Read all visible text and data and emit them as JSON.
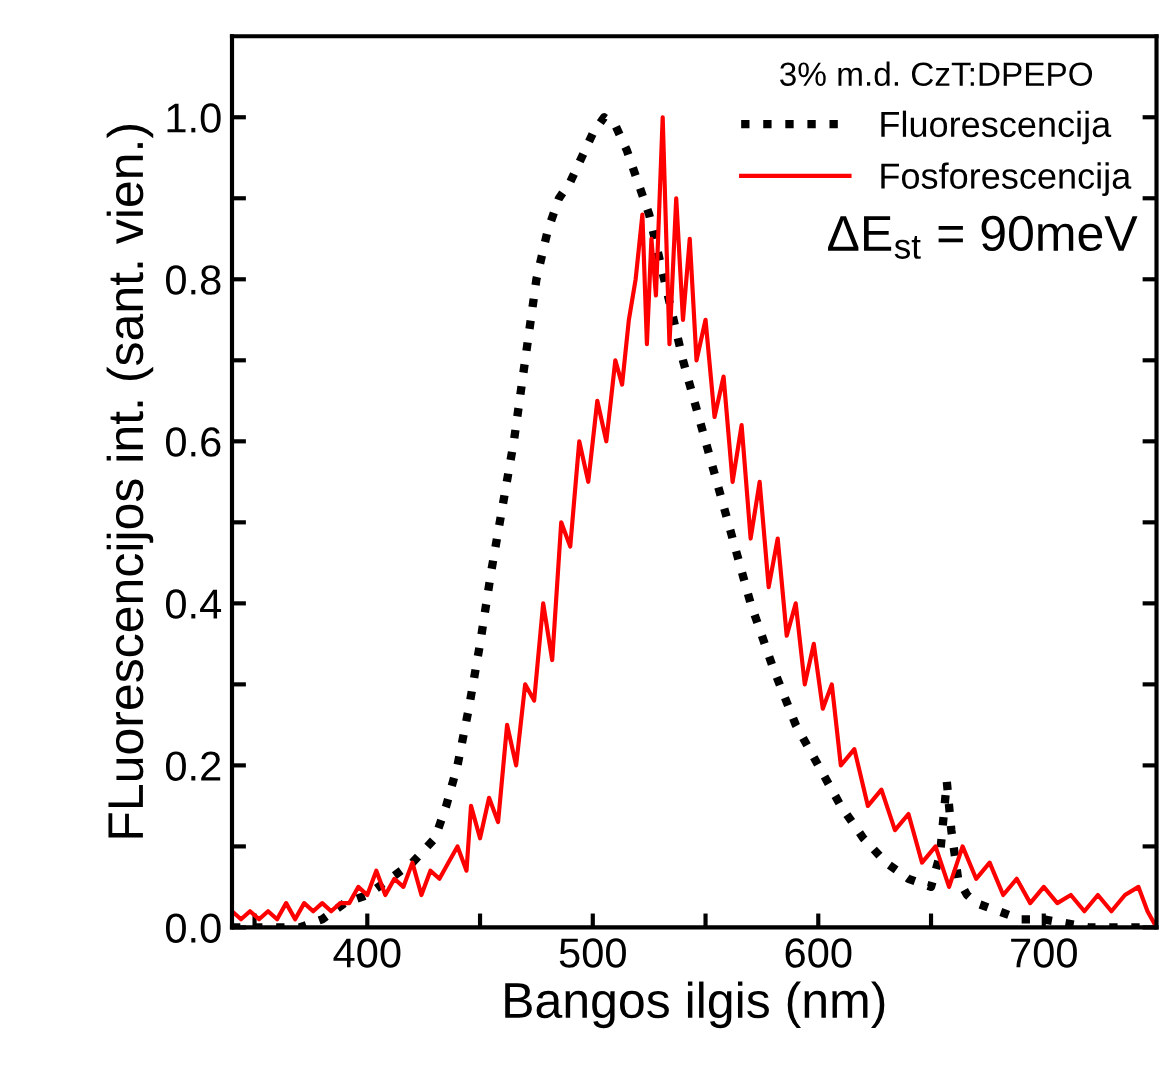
{
  "chart_data": {
    "type": "line",
    "xlabel": "Bangos ilgis (nm)",
    "ylabel": "FLuorescencijos int. (sant. vien.)",
    "xlim": [
      340,
      750
    ],
    "ylim": [
      0,
      1.1
    ],
    "xticks": [
      {
        "value": 350,
        "label": null
      },
      400,
      {
        "value": 450,
        "label": null
      },
      500,
      {
        "value": 550,
        "label": null
      },
      600,
      {
        "value": 650,
        "label": null
      },
      700
    ],
    "yticks": [
      {
        "value": 0,
        "label": "0.0"
      },
      {
        "value": 0.1,
        "label": null
      },
      {
        "value": 0.2,
        "label": "0.2"
      },
      {
        "value": 0.3,
        "label": null
      },
      {
        "value": 0.4,
        "label": "0.4"
      },
      {
        "value": 0.5,
        "label": null
      },
      {
        "value": 0.6,
        "label": "0.6"
      },
      {
        "value": 0.7,
        "label": null
      },
      {
        "value": 0.8,
        "label": "0.8"
      },
      {
        "value": 0.9,
        "label": null
      },
      {
        "value": 1.0,
        "label": "1.0"
      }
    ],
    "grid": false,
    "legend": "top right",
    "legend_title": "3% m.d. CzT:DPEPO",
    "annotations": [
      "ΔE$_{st}$ = 90meV"
    ],
    "series": [
      {
        "name": "Fluorescencija",
        "color": "#000000",
        "line_style": "dotted",
        "x": [
          340,
          360,
          370,
          380,
          390,
          400,
          410,
          420,
          430,
          435,
          440,
          445,
          450,
          455,
          460,
          465,
          470,
          475,
          480,
          485,
          490,
          495,
          500,
          505,
          510,
          515,
          520,
          525,
          530,
          540,
          550,
          560,
          570,
          580,
          590,
          600,
          610,
          620,
          630,
          640,
          650,
          654,
          657,
          659,
          662,
          666,
          670,
          680,
          690,
          700,
          720,
          740,
          750
        ],
        "values": [
          0,
          0,
          0,
          0.01,
          0.03,
          0.04,
          0.06,
          0.08,
          0.11,
          0.15,
          0.2,
          0.27,
          0.35,
          0.44,
          0.52,
          0.6,
          0.7,
          0.8,
          0.86,
          0.9,
          0.92,
          0.95,
          0.98,
          1.0,
          0.99,
          0.96,
          0.92,
          0.88,
          0.82,
          0.7,
          0.6,
          0.5,
          0.4,
          0.32,
          0.25,
          0.2,
          0.15,
          0.11,
          0.08,
          0.06,
          0.05,
          0.09,
          0.18,
          0.12,
          0.06,
          0.04,
          0.03,
          0.02,
          0.01,
          0.01,
          0,
          0,
          0
        ]
      },
      {
        "name": "Fosforescencija",
        "color": "#ff0000",
        "line_style": "solid",
        "x": [
          340,
          344,
          348,
          352,
          356,
          360,
          364,
          368,
          372,
          376,
          380,
          384,
          388,
          392,
          396,
          400,
          404,
          408,
          412,
          416,
          420,
          424,
          428,
          432,
          436,
          440,
          444,
          446,
          450,
          454,
          458,
          462,
          466,
          470,
          474,
          478,
          482,
          486,
          490,
          494,
          498,
          502,
          506,
          510,
          513,
          516,
          519,
          522,
          524,
          526,
          528,
          531,
          534,
          537,
          540,
          543,
          546,
          550,
          554,
          558,
          562,
          566,
          570,
          574,
          578,
          582,
          586,
          590,
          594,
          598,
          602,
          606,
          610,
          616,
          622,
          628,
          634,
          640,
          646,
          652,
          658,
          664,
          670,
          676,
          682,
          688,
          694,
          700,
          706,
          712,
          718,
          724,
          730,
          736,
          742,
          746,
          750
        ],
        "values": [
          0.02,
          0.01,
          0.02,
          0.01,
          0.02,
          0.01,
          0.03,
          0.01,
          0.03,
          0.02,
          0.03,
          0.02,
          0.03,
          0.03,
          0.05,
          0.04,
          0.07,
          0.04,
          0.06,
          0.05,
          0.08,
          0.04,
          0.07,
          0.06,
          0.08,
          0.1,
          0.07,
          0.15,
          0.11,
          0.16,
          0.13,
          0.25,
          0.2,
          0.3,
          0.28,
          0.4,
          0.33,
          0.5,
          0.47,
          0.6,
          0.55,
          0.65,
          0.6,
          0.7,
          0.67,
          0.75,
          0.8,
          0.88,
          0.72,
          0.85,
          0.78,
          1.0,
          0.72,
          0.9,
          0.75,
          0.85,
          0.7,
          0.75,
          0.63,
          0.68,
          0.55,
          0.62,
          0.48,
          0.55,
          0.42,
          0.48,
          0.36,
          0.4,
          0.3,
          0.35,
          0.27,
          0.3,
          0.2,
          0.22,
          0.15,
          0.17,
          0.12,
          0.14,
          0.08,
          0.1,
          0.05,
          0.1,
          0.06,
          0.08,
          0.04,
          0.06,
          0.03,
          0.05,
          0.03,
          0.04,
          0.02,
          0.04,
          0.02,
          0.04,
          0.05,
          0.02,
          0.0
        ]
      }
    ]
  }
}
